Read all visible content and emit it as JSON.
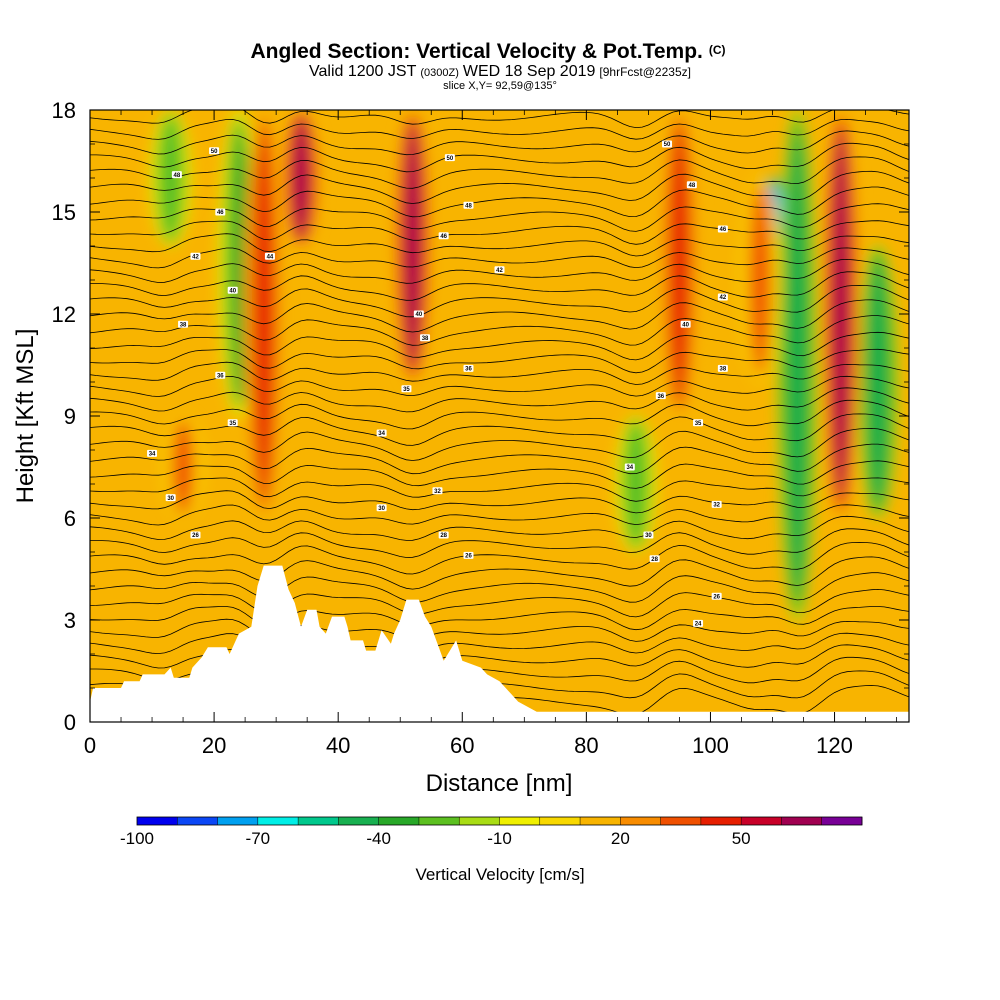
{
  "chart_data": {
    "type": "heatmap",
    "title": "Angled Section: Vertical Velocity & Pot.Temp.",
    "title_suffix": "(C)",
    "subtitle_parts": [
      "Valid 1200 JST",
      "(0300Z)",
      "WED 18 Sep 2019",
      "[9hrFcst@2235z]"
    ],
    "slice_label": "slice X,Y= 92,59@135°",
    "xlabel": "Distance [nm]",
    "ylabel": "Height [Kft MSL]",
    "xlim": [
      0,
      132
    ],
    "ylim": [
      0,
      18
    ],
    "x_ticks": [
      "0",
      "20",
      "40",
      "60",
      "80",
      "100",
      "120"
    ],
    "y_ticks": [
      "0",
      "3",
      "6",
      "9",
      "12",
      "15",
      "18"
    ],
    "colorbar": {
      "title": "Vertical Velocity [cm/s]",
      "tick_labels": [
        "-100",
        "-70",
        "-40",
        "-10",
        "20",
        "50"
      ],
      "levels": [
        -100,
        -90,
        -80,
        -70,
        -60,
        -50,
        -40,
        -30,
        -20,
        -10,
        0,
        10,
        20,
        30,
        40,
        50,
        60,
        70
      ],
      "colors": [
        "#0000ee",
        "#0a46f5",
        "#00a0f0",
        "#00eee6",
        "#00c88c",
        "#18b050",
        "#28a828",
        "#5cc020",
        "#a8dc14",
        "#f0f000",
        "#f8d800",
        "#f8b400",
        "#f88c00",
        "#f05000",
        "#e61e00",
        "#c80028",
        "#a00050",
        "#780096"
      ]
    },
    "updrafts": [
      {
        "x": 15,
        "z_from": 6,
        "z_to": 9,
        "peak": 30
      },
      {
        "x": 28,
        "z_from": 6,
        "z_to": 18,
        "peak": 45
      },
      {
        "x": 34,
        "z_from": 14,
        "z_to": 18,
        "peak": 65
      },
      {
        "x": 52,
        "z_from": 10,
        "z_to": 18,
        "peak": 60
      },
      {
        "x": 95,
        "z_from": 9,
        "z_to": 18,
        "peak": 40
      },
      {
        "x": 108,
        "z_from": 10,
        "z_to": 16,
        "peak": 35
      },
      {
        "x": 121,
        "z_from": 6,
        "z_to": 18,
        "peak": 60
      }
    ],
    "downdrafts": [
      {
        "x": 13,
        "z_from": 14,
        "z_to": 18,
        "peak": -30
      },
      {
        "x": 24,
        "z_from": 9,
        "z_to": 18,
        "peak": -40
      },
      {
        "x": 88,
        "z_from": 5,
        "z_to": 9,
        "peak": -30
      },
      {
        "x": 110,
        "z_from": 12,
        "z_to": 16,
        "peak": -85
      },
      {
        "x": 114,
        "z_from": 3,
        "z_to": 18,
        "peak": -45
      },
      {
        "x": 127,
        "z_from": 6,
        "z_to": 14,
        "peak": -45
      }
    ],
    "terrain": [
      [
        0,
        0.6
      ],
      [
        0.5,
        1.0
      ],
      [
        5,
        1.0
      ],
      [
        5.5,
        1.2
      ],
      [
        8,
        1.2
      ],
      [
        8.5,
        1.4
      ],
      [
        12,
        1.4
      ],
      [
        13,
        1.6
      ],
      [
        13.5,
        1.3
      ],
      [
        16,
        1.3
      ],
      [
        16.5,
        1.6
      ],
      [
        18,
        1.9
      ],
      [
        19,
        2.2
      ],
      [
        22,
        2.2
      ],
      [
        22.5,
        2.0
      ],
      [
        23,
        2.2
      ],
      [
        24,
        2.6
      ],
      [
        26,
        2.8
      ],
      [
        27,
        4.0
      ],
      [
        28,
        4.6
      ],
      [
        31,
        4.6
      ],
      [
        32,
        3.9
      ],
      [
        33,
        3.5
      ],
      [
        34,
        2.8
      ],
      [
        35,
        3.3
      ],
      [
        36.5,
        3.3
      ],
      [
        37,
        2.8
      ],
      [
        38,
        2.6
      ],
      [
        39,
        3.1
      ],
      [
        41,
        3.1
      ],
      [
        41.5,
        2.8
      ],
      [
        42,
        2.4
      ],
      [
        44,
        2.4
      ],
      [
        44.5,
        2.1
      ],
      [
        46,
        2.1
      ],
      [
        47,
        2.7
      ],
      [
        48.5,
        2.3
      ],
      [
        49,
        2.6
      ],
      [
        50,
        3.0
      ],
      [
        51,
        3.6
      ],
      [
        53,
        3.6
      ],
      [
        54,
        3.1
      ],
      [
        55,
        2.8
      ],
      [
        56,
        2.3
      ],
      [
        57,
        1.8
      ],
      [
        58,
        2.1
      ],
      [
        59,
        2.4
      ],
      [
        60,
        1.8
      ],
      [
        63,
        1.6
      ],
      [
        64,
        1.4
      ],
      [
        66,
        1.2
      ],
      [
        67,
        1.0
      ],
      [
        68,
        0.8
      ],
      [
        69,
        0.6
      ],
      [
        71,
        0.4
      ],
      [
        72,
        0.3
      ],
      [
        132,
        0.3
      ]
    ],
    "contour_labels": [
      {
        "x": 20,
        "z": 16.8,
        "text": "50"
      },
      {
        "x": 14,
        "z": 16.1,
        "text": "48"
      },
      {
        "x": 21,
        "z": 15.0,
        "text": "46"
      },
      {
        "x": 17,
        "z": 13.7,
        "text": "42"
      },
      {
        "x": 23,
        "z": 12.7,
        "text": "40"
      },
      {
        "x": 15,
        "z": 11.7,
        "text": "38"
      },
      {
        "x": 21,
        "z": 10.2,
        "text": "36"
      },
      {
        "x": 23,
        "z": 8.8,
        "text": "35"
      },
      {
        "x": 10,
        "z": 7.9,
        "text": "34"
      },
      {
        "x": 13,
        "z": 6.6,
        "text": "30"
      },
      {
        "x": 17,
        "z": 5.5,
        "text": "26"
      },
      {
        "x": 29,
        "z": 13.7,
        "text": "44"
      },
      {
        "x": 58,
        "z": 16.6,
        "text": "50"
      },
      {
        "x": 61,
        "z": 15.2,
        "text": "48"
      },
      {
        "x": 57,
        "z": 14.3,
        "text": "46"
      },
      {
        "x": 66,
        "z": 13.3,
        "text": "42"
      },
      {
        "x": 53,
        "z": 12.0,
        "text": "40"
      },
      {
        "x": 54,
        "z": 11.3,
        "text": "38"
      },
      {
        "x": 61,
        "z": 10.4,
        "text": "36"
      },
      {
        "x": 51,
        "z": 9.8,
        "text": "35"
      },
      {
        "x": 47,
        "z": 8.5,
        "text": "34"
      },
      {
        "x": 56,
        "z": 6.8,
        "text": "32"
      },
      {
        "x": 47,
        "z": 6.3,
        "text": "30"
      },
      {
        "x": 57,
        "z": 5.5,
        "text": "28"
      },
      {
        "x": 61,
        "z": 4.9,
        "text": "26"
      },
      {
        "x": 93,
        "z": 17.0,
        "text": "50"
      },
      {
        "x": 97,
        "z": 15.8,
        "text": "48"
      },
      {
        "x": 102,
        "z": 14.5,
        "text": "46"
      },
      {
        "x": 102,
        "z": 12.5,
        "text": "42"
      },
      {
        "x": 96,
        "z": 11.7,
        "text": "40"
      },
      {
        "x": 102,
        "z": 10.4,
        "text": "38"
      },
      {
        "x": 92,
        "z": 9.6,
        "text": "36"
      },
      {
        "x": 98,
        "z": 8.8,
        "text": "35"
      },
      {
        "x": 87,
        "z": 7.5,
        "text": "34"
      },
      {
        "x": 101,
        "z": 6.4,
        "text": "32"
      },
      {
        "x": 90,
        "z": 5.5,
        "text": "30"
      },
      {
        "x": 91,
        "z": 4.8,
        "text": "28"
      },
      {
        "x": 101,
        "z": 3.7,
        "text": "26"
      },
      {
        "x": 98,
        "z": 2.9,
        "text": "24"
      }
    ]
  }
}
